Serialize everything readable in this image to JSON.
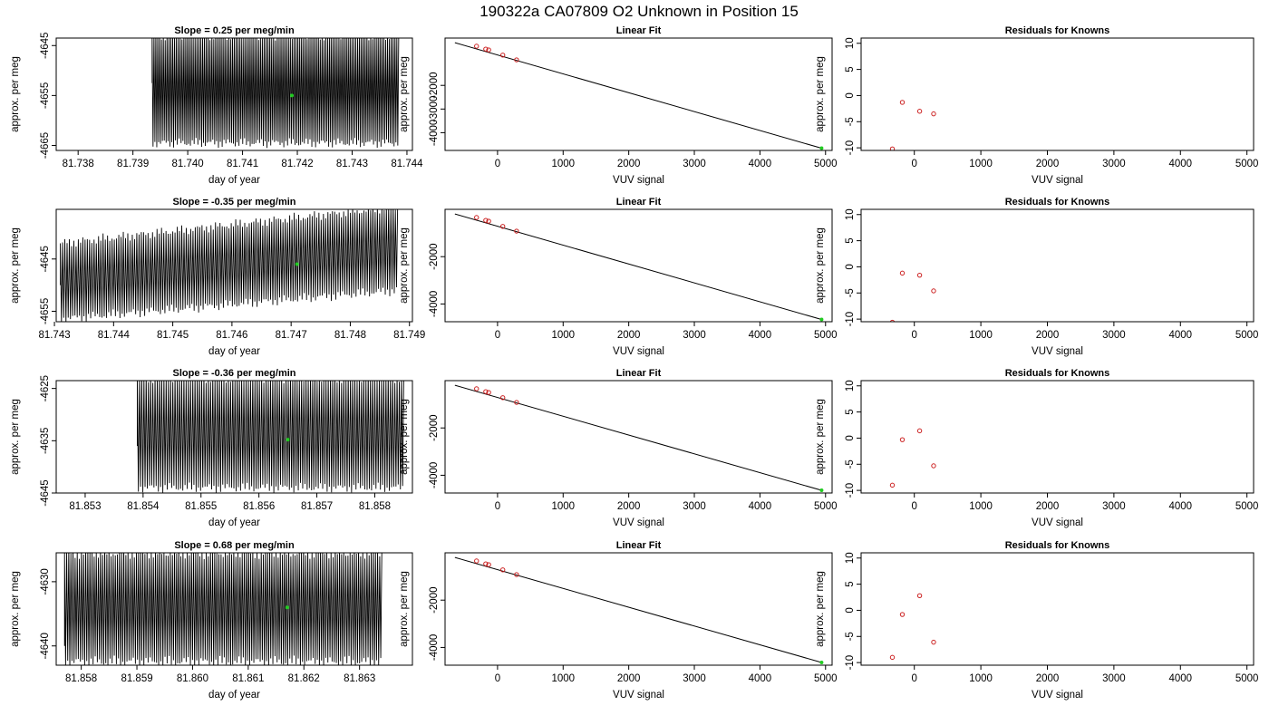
{
  "title": "190322a      CA07809    O2 Unknown in Position  15",
  "colors": {
    "trace": "#000000",
    "marker_green": "#22cc22",
    "known_points": "#cc2222",
    "fit_line": "#000000"
  },
  "chart_data": [
    {
      "type": "line",
      "row": 0,
      "kind": "trace",
      "title": "Slope =  0.25  per meg/min",
      "xlabel": "day of year",
      "ylabel": "approx. per meg",
      "xlim": [
        81.7376,
        81.7441
      ],
      "ylim": [
        -4666.0,
        -4643.5
      ],
      "xticks": [
        81.738,
        81.739,
        81.74,
        81.741,
        81.742,
        81.743,
        81.744
      ],
      "xtick_labels": [
        "81.738",
        "81.739",
        "81.740",
        "81.741",
        "81.742",
        "81.743",
        "81.744"
      ],
      "yticks": [
        -4645,
        -4655,
        -4665
      ],
      "ytick_labels": [
        "-4645",
        "-4655",
        "-4665"
      ],
      "trace": {
        "start": 81.73935,
        "end": 81.74385,
        "cycles": 132,
        "upper": -4643.0,
        "lower": -4664.5,
        "first": -4652.5
      },
      "marker": {
        "x": 81.7419,
        "y": -4655.0
      }
    },
    {
      "type": "scatter",
      "row": 0,
      "kind": "fit",
      "title": "Linear Fit",
      "xlabel": "VUV signal",
      "ylabel": "approx. per meg",
      "xlim": [
        -800,
        5100
      ],
      "ylim": [
        -4750,
        0
      ],
      "xticks": [
        0,
        1000,
        2000,
        3000,
        4000,
        5000
      ],
      "xtick_labels": [
        "0",
        "1000",
        "2000",
        "3000",
        "4000",
        "5000"
      ],
      "yticks": [
        -2000,
        -3000,
        -4000
      ],
      "ytick_labels": [
        "-2000",
        "-3000",
        "-4000"
      ],
      "points": [
        [
          -320,
          -345
        ],
        [
          -180,
          -465
        ],
        [
          -135,
          -500
        ],
        [
          80,
          -720
        ],
        [
          290,
          -920
        ]
      ],
      "unknown": [
        4940,
        -4655
      ],
      "line": [
        [
          -650,
          -195
        ],
        [
          4950,
          -4665
        ]
      ]
    },
    {
      "type": "scatter",
      "row": 0,
      "kind": "residual",
      "title": "Residuals for Knowns",
      "xlabel": "VUV signal",
      "ylabel": "approx. per meg",
      "xlim": [
        -800,
        5100
      ],
      "ylim": [
        -10.5,
        11.0
      ],
      "xticks": [
        0,
        1000,
        2000,
        3000,
        4000,
        5000
      ],
      "xtick_labels": [
        "0",
        "1000",
        "2000",
        "3000",
        "4000",
        "5000"
      ],
      "yticks": [
        10,
        5,
        0,
        -5,
        -10
      ],
      "ytick_labels": [
        "10",
        "5",
        "0",
        "-5",
        "-10"
      ],
      "points": [
        [
          -330,
          -10.2
        ],
        [
          -180,
          -1.3
        ],
        [
          80,
          -3.0
        ],
        [
          290,
          -3.5
        ]
      ]
    },
    {
      "type": "line",
      "row": 1,
      "kind": "trace",
      "title": "Slope =  -0.35  per meg/min",
      "xlabel": "day of year",
      "ylabel": "approx. per meg",
      "xlim": [
        81.74303,
        81.74905
      ],
      "ylim": [
        -4657.0,
        -4635.5
      ],
      "xticks": [
        81.743,
        81.744,
        81.745,
        81.746,
        81.747,
        81.748,
        81.749
      ],
      "xtick_labels": [
        "81.743",
        "81.744",
        "81.745",
        "81.746",
        "81.747",
        "81.748",
        "81.749"
      ],
      "yticks": [
        -4645,
        -4655
      ],
      "ytick_labels": [
        "-4645",
        "-4655"
      ],
      "trace": {
        "start": 81.7431,
        "end": 81.7488,
        "cycles": 150,
        "upper": -4642.0,
        "lower": -4656.5,
        "first": -4650.0,
        "upper_end": -4635.0,
        "lower_end": -4651.0
      },
      "marker": {
        "x": 81.7471,
        "y": -4646.0
      }
    },
    {
      "type": "scatter",
      "row": 1,
      "kind": "fit",
      "title": "Linear Fit",
      "xlabel": "VUV signal",
      "ylabel": "approx. per meg",
      "xlim": [
        -800,
        5100
      ],
      "ylim": [
        -4750,
        0
      ],
      "xticks": [
        0,
        1000,
        2000,
        3000,
        4000,
        5000
      ],
      "xtick_labels": [
        "0",
        "1000",
        "2000",
        "3000",
        "4000",
        "5000"
      ],
      "yticks": [
        -2000,
        -4000
      ],
      "ytick_labels": [
        "-2000",
        "-4000"
      ],
      "points": [
        [
          -320,
          -345
        ],
        [
          -180,
          -465
        ],
        [
          -135,
          -500
        ],
        [
          80,
          -720
        ],
        [
          290,
          -920
        ]
      ],
      "unknown": [
        4940,
        -4655
      ],
      "line": [
        [
          -650,
          -195
        ],
        [
          4950,
          -4665
        ]
      ]
    },
    {
      "type": "scatter",
      "row": 1,
      "kind": "residual",
      "title": "Residuals for Knowns",
      "xlabel": "VUV signal",
      "ylabel": "approx. per meg",
      "xlim": [
        -800,
        5100
      ],
      "ylim": [
        -10.5,
        11.0
      ],
      "xticks": [
        0,
        1000,
        2000,
        3000,
        4000,
        5000
      ],
      "xtick_labels": [
        "0",
        "1000",
        "2000",
        "3000",
        "4000",
        "5000"
      ],
      "yticks": [
        10,
        5,
        0,
        -5,
        -10
      ],
      "ytick_labels": [
        "10",
        "5",
        "0",
        "-5",
        "-10"
      ],
      "points": [
        [
          -330,
          -10.6
        ],
        [
          -180,
          -1.2
        ],
        [
          80,
          -1.6
        ],
        [
          290,
          -4.6
        ]
      ]
    },
    {
      "type": "line",
      "row": 2,
      "kind": "trace",
      "title": "Slope =  -0.36  per meg/min",
      "xlabel": "day of year",
      "ylabel": "approx. per meg",
      "xlim": [
        81.8525,
        81.85865
      ],
      "ylim": [
        -4645.0,
        -4623.5
      ],
      "xticks": [
        81.853,
        81.854,
        81.855,
        81.856,
        81.857,
        81.858
      ],
      "xtick_labels": [
        "81.853",
        "81.854",
        "81.855",
        "81.856",
        "81.857",
        "81.858"
      ],
      "yticks": [
        -4625,
        -4635,
        -4645
      ],
      "ytick_labels": [
        "-4625",
        "-4635",
        "-4645"
      ],
      "trace": {
        "start": 81.8539,
        "end": 81.8585,
        "cycles": 120,
        "upper": -4623.0,
        "lower": -4644.0,
        "first": -4636.0
      },
      "marker": {
        "x": 81.8565,
        "y": -4634.8
      }
    },
    {
      "type": "scatter",
      "row": 2,
      "kind": "fit",
      "title": "Linear Fit",
      "xlabel": "VUV signal",
      "ylabel": "approx. per meg",
      "xlim": [
        -800,
        5100
      ],
      "ylim": [
        -4750,
        0
      ],
      "xticks": [
        0,
        1000,
        2000,
        3000,
        4000,
        5000
      ],
      "xtick_labels": [
        "0",
        "1000",
        "2000",
        "3000",
        "4000",
        "5000"
      ],
      "yticks": [
        -2000,
        -4000
      ],
      "ytick_labels": [
        "-2000",
        "-4000"
      ],
      "points": [
        [
          -320,
          -345
        ],
        [
          -180,
          -465
        ],
        [
          -135,
          -500
        ],
        [
          80,
          -720
        ],
        [
          290,
          -920
        ]
      ],
      "unknown": [
        4940,
        -4635
      ],
      "line": [
        [
          -650,
          -195
        ],
        [
          4950,
          -4645
        ]
      ]
    },
    {
      "type": "scatter",
      "row": 2,
      "kind": "residual",
      "title": "Residuals for Knowns",
      "xlabel": "VUV signal",
      "ylabel": "approx. per meg",
      "xlim": [
        -800,
        5100
      ],
      "ylim": [
        -10.5,
        11.0
      ],
      "xticks": [
        0,
        1000,
        2000,
        3000,
        4000,
        5000
      ],
      "xtick_labels": [
        "0",
        "1000",
        "2000",
        "3000",
        "4000",
        "5000"
      ],
      "yticks": [
        10,
        5,
        0,
        -5,
        -10
      ],
      "ytick_labels": [
        "10",
        "5",
        "0",
        "-5",
        "-10"
      ],
      "points": [
        [
          -330,
          -9.0
        ],
        [
          -180,
          -0.3
        ],
        [
          80,
          1.4
        ],
        [
          290,
          -5.3
        ]
      ]
    },
    {
      "type": "line",
      "row": 3,
      "kind": "trace",
      "title": "Slope =  0.68  per meg/min",
      "xlabel": "day of year",
      "ylabel": "approx. per meg",
      "xlim": [
        81.85755,
        81.86395
      ],
      "ylim": [
        -4643.0,
        -4625.5
      ],
      "xticks": [
        81.858,
        81.859,
        81.86,
        81.861,
        81.862,
        81.863
      ],
      "xtick_labels": [
        "81.858",
        "81.859",
        "81.860",
        "81.861",
        "81.862",
        "81.863"
      ],
      "yticks": [
        -4630,
        -4640
      ],
      "ytick_labels": [
        "-4630",
        "-4640"
      ],
      "trace": {
        "start": 81.8577,
        "end": 81.8634,
        "cycles": 150,
        "upper": -4625.5,
        "lower": -4642.5,
        "first": -4640.0
      },
      "marker": {
        "x": 81.8617,
        "y": -4634.0
      }
    },
    {
      "type": "scatter",
      "row": 3,
      "kind": "fit",
      "title": "Linear Fit",
      "xlabel": "VUV signal",
      "ylabel": "approx. per meg",
      "xlim": [
        -800,
        5100
      ],
      "ylim": [
        -4750,
        0
      ],
      "xticks": [
        0,
        1000,
        2000,
        3000,
        4000,
        5000
      ],
      "xtick_labels": [
        "0",
        "1000",
        "2000",
        "3000",
        "4000",
        "5000"
      ],
      "yticks": [
        -2000,
        -4000
      ],
      "ytick_labels": [
        "-2000",
        "-4000"
      ],
      "points": [
        [
          -320,
          -345
        ],
        [
          -180,
          -465
        ],
        [
          -135,
          -500
        ],
        [
          80,
          -720
        ],
        [
          290,
          -920
        ]
      ],
      "unknown": [
        4940,
        -4634
      ],
      "line": [
        [
          -650,
          -195
        ],
        [
          4950,
          -4644
        ]
      ]
    },
    {
      "type": "scatter",
      "row": 3,
      "kind": "residual",
      "title": "Residuals for Knowns",
      "xlabel": "VUV signal",
      "ylabel": "approx. per meg",
      "xlim": [
        -800,
        5100
      ],
      "ylim": [
        -10.5,
        11.0
      ],
      "xticks": [
        0,
        1000,
        2000,
        3000,
        4000,
        5000
      ],
      "xtick_labels": [
        "0",
        "1000",
        "2000",
        "3000",
        "4000",
        "5000"
      ],
      "yticks": [
        10,
        5,
        0,
        -5,
        -10
      ],
      "ytick_labels": [
        "10",
        "5",
        "0",
        "-5",
        "-10"
      ],
      "points": [
        [
          -330,
          -9.0
        ],
        [
          -180,
          -0.8
        ],
        [
          80,
          2.8
        ],
        [
          290,
          -6.1
        ]
      ]
    }
  ]
}
